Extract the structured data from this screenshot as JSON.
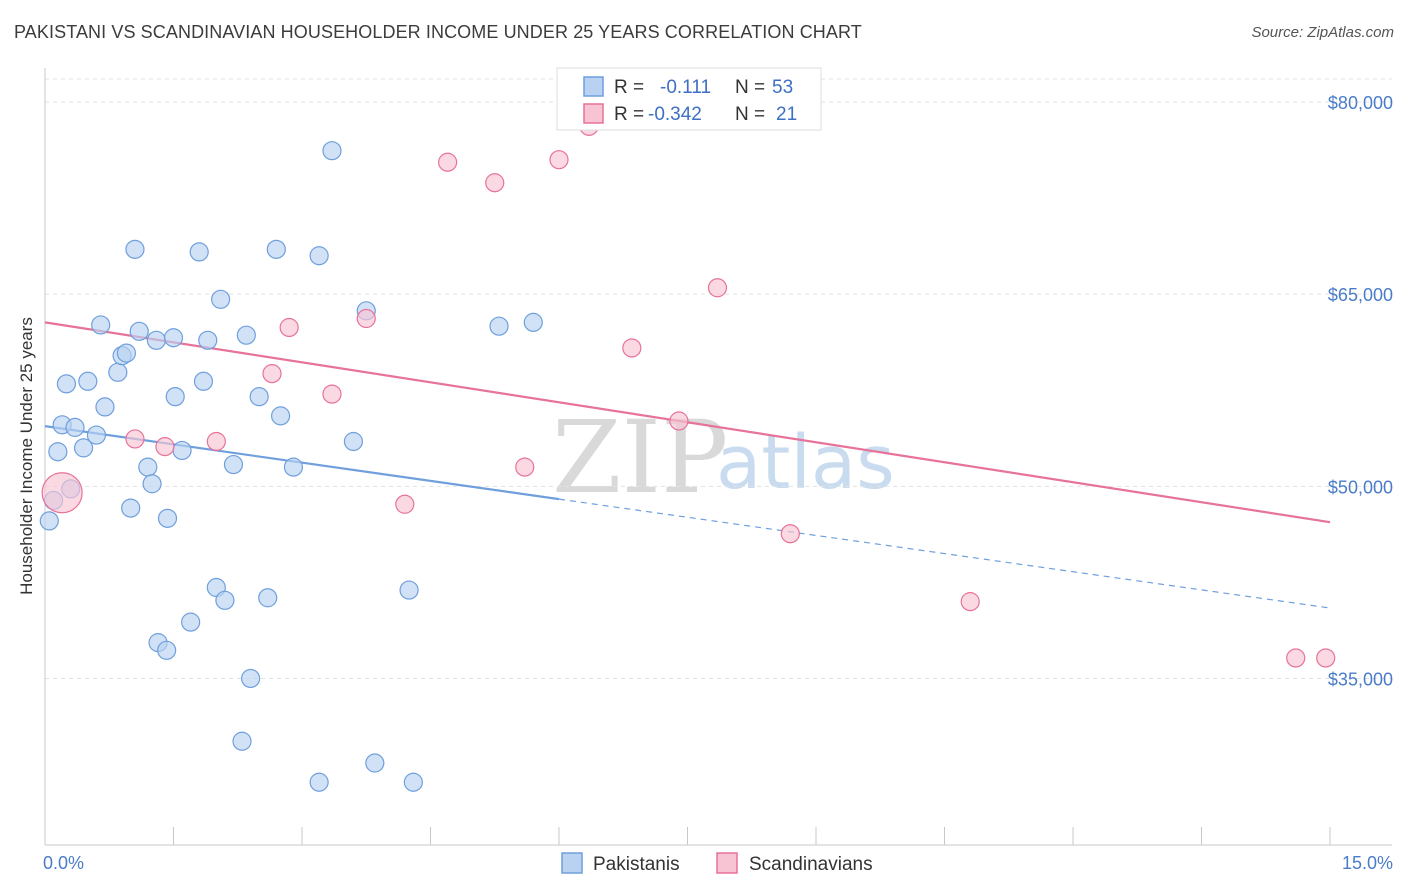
{
  "title": "PAKISTANI VS SCANDINAVIAN HOUSEHOLDER INCOME UNDER 25 YEARS CORRELATION CHART",
  "source": "Source: ZipAtlas.com",
  "watermark": {
    "zip": "ZIP",
    "atlas": "atlas"
  },
  "chart_data": {
    "type": "scatter",
    "ylabel": "Householder Income Under 25 years",
    "xlim": [
      0,
      15
    ],
    "ylim": [
      22000,
      82500
    ],
    "x_tick_labels": [
      {
        "value": 0,
        "label": "0.0%"
      },
      {
        "value": 15,
        "label": "15.0%"
      }
    ],
    "x_minor_ticks": [
      0,
      1.5,
      3,
      4.5,
      6,
      7.5,
      9,
      10.5,
      12,
      13.5,
      15
    ],
    "y_ticks": [
      {
        "value": 80000,
        "label": "$80,000"
      },
      {
        "value": 65000,
        "label": "$65,000"
      },
      {
        "value": 50000,
        "label": "$50,000"
      },
      {
        "value": 35000,
        "label": "$35,000"
      }
    ],
    "grid": "horizontal dashed",
    "legend_position": "bottom-center",
    "stats_position": "top-center",
    "series": [
      {
        "name": "Pakistanis",
        "color": "#6f9fdc",
        "fill": "#b9d2f2",
        "R": "-0.111",
        "N": "53",
        "r_label": "R =",
        "n_label": "N =",
        "trend": {
          "x0": 0,
          "y0": 54700,
          "x1": 6,
          "y1": 49000,
          "dash_to_x": 15,
          "dash_to_y": 40500
        },
        "points": [
          [
            0.05,
            47300
          ],
          [
            0.1,
            48900
          ],
          [
            0.15,
            52700
          ],
          [
            0.2,
            54800
          ],
          [
            0.25,
            58000
          ],
          [
            0.3,
            49800
          ],
          [
            0.35,
            54600
          ],
          [
            0.45,
            53000
          ],
          [
            0.5,
            58200
          ],
          [
            0.6,
            54000
          ],
          [
            0.65,
            62600
          ],
          [
            0.7,
            56200
          ],
          [
            0.85,
            58900
          ],
          [
            0.9,
            60200
          ],
          [
            0.95,
            60400
          ],
          [
            1.0,
            48300
          ],
          [
            1.05,
            68500
          ],
          [
            1.1,
            62100
          ],
          [
            1.2,
            51500
          ],
          [
            1.25,
            50200
          ],
          [
            1.3,
            61400
          ],
          [
            1.32,
            37800
          ],
          [
            1.42,
            37200
          ],
          [
            1.43,
            47500
          ],
          [
            1.5,
            61600
          ],
          [
            1.52,
            57000
          ],
          [
            1.6,
            52800
          ],
          [
            1.7,
            39400
          ],
          [
            1.8,
            68300
          ],
          [
            1.85,
            58200
          ],
          [
            1.9,
            61400
          ],
          [
            2.0,
            42100
          ],
          [
            2.05,
            64600
          ],
          [
            2.1,
            41100
          ],
          [
            2.2,
            51700
          ],
          [
            2.3,
            30100
          ],
          [
            2.35,
            61800
          ],
          [
            2.4,
            35000
          ],
          [
            2.5,
            57000
          ],
          [
            2.6,
            41300
          ],
          [
            2.7,
            68500
          ],
          [
            2.75,
            55500
          ],
          [
            2.9,
            51500
          ],
          [
            3.2,
            68000
          ],
          [
            3.2,
            26900
          ],
          [
            3.35,
            76200
          ],
          [
            3.6,
            53500
          ],
          [
            3.75,
            63700
          ],
          [
            3.85,
            28400
          ],
          [
            4.25,
            41900
          ],
          [
            4.3,
            26900
          ],
          [
            5.3,
            62500
          ],
          [
            5.7,
            62800
          ]
        ]
      },
      {
        "name": "Scandinavians",
        "color": "#e7729a",
        "fill": "#f7c4d4",
        "R": "-0.342",
        "N": "21",
        "r_label": "R =",
        "n_label": "N =",
        "trend": {
          "x0": 0,
          "y0": 62800,
          "x1": 15,
          "y1": 47200
        },
        "points": [
          [
            0.2,
            49500
          ],
          [
            1.05,
            53700
          ],
          [
            1.4,
            53100
          ],
          [
            2.0,
            53500
          ],
          [
            2.65,
            58800
          ],
          [
            2.85,
            62400
          ],
          [
            3.35,
            57200
          ],
          [
            3.75,
            63100
          ],
          [
            4.2,
            48600
          ],
          [
            4.7,
            75300
          ],
          [
            5.25,
            73700
          ],
          [
            5.6,
            51500
          ],
          [
            6.0,
            75500
          ],
          [
            6.35,
            78100
          ],
          [
            6.85,
            60800
          ],
          [
            7.4,
            55100
          ],
          [
            7.85,
            65500
          ],
          [
            8.7,
            46300
          ],
          [
            10.8,
            41000
          ],
          [
            14.6,
            36600
          ],
          [
            14.95,
            36600
          ]
        ]
      }
    ]
  }
}
